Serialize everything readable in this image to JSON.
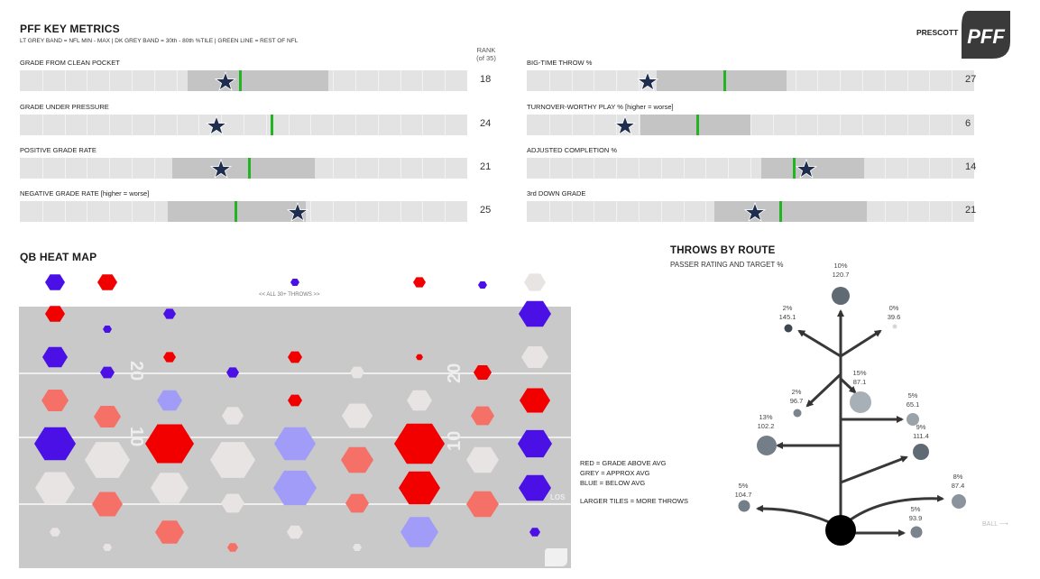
{
  "header": {
    "title": "PFF KEY METRICS",
    "subtitle": "LT GREY BAND = NFL MIN - MAX | DK GREY BAND = 30th - 80th %TILE | GREEN LINE = REST OF NFL",
    "player": "PRESCOTT",
    "logo_text": "PFF",
    "rank_header_1": "RANK",
    "rank_header_2": "(of 35)"
  },
  "metrics": [
    {
      "label": "GRADE FROM CLEAN POCKET",
      "rank": "18",
      "band_start": 0.375,
      "band_end": 0.69,
      "green": 0.49,
      "star": 0.46
    },
    {
      "label": "GRADE UNDER PRESSURE",
      "rank": "24",
      "band_start": 0.0,
      "band_end": 0.0,
      "green": 0.56,
      "star": 0.44
    },
    {
      "label": "POSITIVE GRADE RATE",
      "rank": "21",
      "band_start": 0.34,
      "band_end": 0.66,
      "green": 0.51,
      "star": 0.45
    },
    {
      "label": "NEGATIVE GRADE RATE [higher = worse]",
      "rank": "25",
      "band_start": 0.33,
      "band_end": 0.64,
      "green": 0.48,
      "star": 0.62
    },
    {
      "label": "BIG-TIME THROW %",
      "rank": "27",
      "band_start": 0.29,
      "band_end": 0.58,
      "green": 0.44,
      "star": 0.27
    },
    {
      "label": "TURNOVER-WORTHY PLAY % [higher = worse]",
      "rank": "6",
      "band_start": 0.255,
      "band_end": 0.5,
      "green": 0.38,
      "star": 0.22
    },
    {
      "label": "ADJUSTED COMPLETION %",
      "rank": "14",
      "band_start": 0.525,
      "band_end": 0.755,
      "green": 0.595,
      "star": 0.625
    },
    {
      "label": "3rd DOWN GRADE",
      "rank": "21",
      "band_start": 0.42,
      "band_end": 0.76,
      "green": 0.565,
      "star": 0.51
    }
  ],
  "heatmap": {
    "title": "QB HEAT MAP",
    "all_throws_label": "<< ALL 30+ THROWS >>",
    "yard_markers": [
      "20",
      "10",
      "20",
      "10"
    ],
    "los_label": "LOS"
  },
  "legend": {
    "line1": "RED = GRADE ABOVE AVG",
    "line2": "GREY = APPROX AVG",
    "line3": "BLUE = BELOW AVG",
    "line4": "LARGER TILES = MORE THROWS"
  },
  "routes": {
    "title": "THROWS BY ROUTE",
    "subtitle": "PASSER RATING AND TARGET %",
    "ball_label": "BALL",
    "items": [
      {
        "pct": "10%",
        "rating": "120.7"
      },
      {
        "pct": "2%",
        "rating": "145.1"
      },
      {
        "pct": "0%",
        "rating": "39.6"
      },
      {
        "pct": "15%",
        "rating": "87.1"
      },
      {
        "pct": "2%",
        "rating": "96.7"
      },
      {
        "pct": "5%",
        "rating": "65.1"
      },
      {
        "pct": "13%",
        "rating": "102.2"
      },
      {
        "pct": "9%",
        "rating": "111.4"
      },
      {
        "pct": "8%",
        "rating": "87.4"
      },
      {
        "pct": "5%",
        "rating": "104.7"
      },
      {
        "pct": "5%",
        "rating": "93.9"
      }
    ]
  },
  "colors": {
    "band_light": "#e3e3e3",
    "band_dark": "#c4c4c4",
    "green_line": "#22b422",
    "star": "#1f2d4f",
    "field": "#c9c9c9",
    "red": "#f20000",
    "light_red": "#f57066",
    "blue": "#4a10e6",
    "light_blue": "#a09cf7",
    "grey_tile": "#e8e4e4",
    "route_node": "#6a747e"
  }
}
